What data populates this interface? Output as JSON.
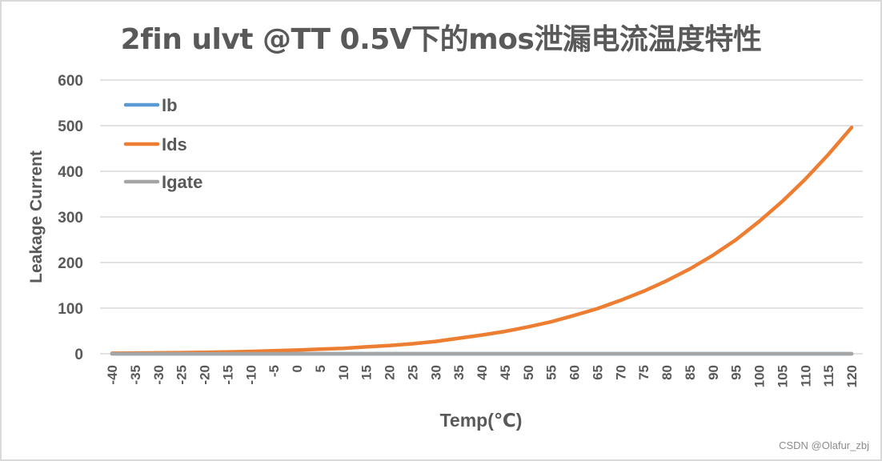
{
  "chart_data": {
    "type": "line",
    "title": "2fin ulvt  @TT 0.5V下的mos泄漏电流温度特性",
    "xlabel": "Temp(℃)",
    "ylabel": "Leakage Current",
    "ylim": [
      0,
      600
    ],
    "yticks": [
      0,
      100,
      200,
      300,
      400,
      500,
      600
    ],
    "grid": true,
    "legend_position": "upper-left-inside",
    "categories": [
      -40,
      -35,
      -30,
      -25,
      -20,
      -15,
      -10,
      -5,
      0,
      5,
      10,
      15,
      20,
      25,
      30,
      35,
      40,
      45,
      50,
      55,
      60,
      65,
      70,
      75,
      80,
      85,
      90,
      95,
      100,
      105,
      110,
      115,
      120
    ],
    "series": [
      {
        "name": "Ib",
        "color": "#5b9bd5",
        "values": [
          0,
          0,
          0,
          0,
          0,
          0,
          0,
          0,
          0,
          0,
          0,
          0,
          0,
          0,
          0,
          0,
          0,
          0,
          0,
          0,
          0,
          0,
          0,
          0,
          0,
          0,
          0,
          0,
          0,
          0,
          0,
          0,
          0
        ]
      },
      {
        "name": "Ids",
        "color": "#ed7d31",
        "values": [
          1,
          1.5,
          2,
          2.5,
          3,
          4,
          5,
          6.5,
          8,
          10,
          12,
          15,
          18,
          22,
          27,
          34,
          41,
          49,
          59,
          70,
          84,
          99,
          117,
          137,
          160,
          186,
          216,
          250,
          290,
          334,
          383,
          437,
          496
        ]
      },
      {
        "name": "Igate",
        "color": "#a5a5a5",
        "values": [
          0,
          0,
          0,
          0,
          0,
          0,
          0,
          0,
          0,
          0,
          0,
          0,
          0,
          0,
          0,
          0,
          0,
          0,
          0,
          0,
          0,
          0,
          0,
          0,
          0,
          0,
          0,
          0,
          0,
          0,
          0,
          0,
          0
        ]
      }
    ]
  },
  "watermark": "CSDN @Olafur_zbj",
  "colors": {
    "text": "#595959",
    "grid": "#d9d9d9",
    "border": "#d9d9d9"
  }
}
